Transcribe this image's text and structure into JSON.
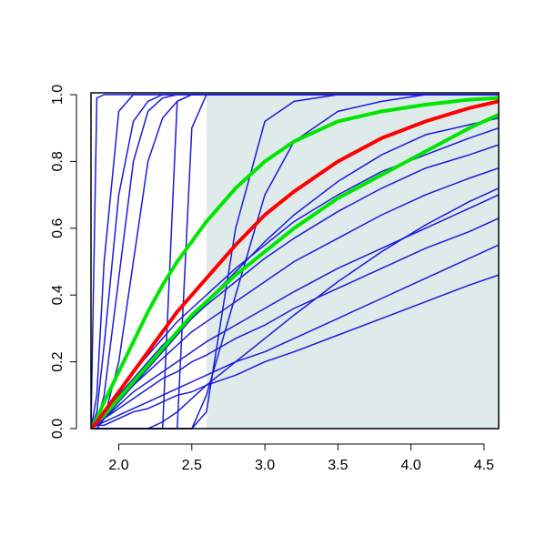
{
  "chart_data": {
    "type": "line",
    "x": [
      1.81,
      1.85,
      1.9,
      2.0,
      2.1,
      2.2,
      2.3,
      2.4,
      2.5,
      2.6,
      2.8,
      3.0,
      3.2,
      3.5,
      3.8,
      4.1,
      4.4,
      4.6
    ],
    "xlim": [
      1.81,
      4.6
    ],
    "ylim": [
      0,
      1
    ],
    "xticks": [
      {
        "value": 2,
        "label": "2.0"
      },
      {
        "value": 2.5,
        "label": "2.5"
      },
      {
        "value": 3,
        "label": "3.0"
      },
      {
        "value": 3.5,
        "label": "3.5"
      },
      {
        "value": 4,
        "label": "4.0"
      },
      {
        "value": 4.5,
        "label": "4.5"
      }
    ],
    "yticks": [
      {
        "value": 0,
        "label": "0.0"
      },
      {
        "value": 0.2,
        "label": "0.2"
      },
      {
        "value": 0.4,
        "label": "0.4"
      },
      {
        "value": 0.6,
        "label": "0.6"
      },
      {
        "value": 0.8,
        "label": "0.8"
      },
      {
        "value": 1,
        "label": "1.0"
      }
    ],
    "shaded_region": {
      "xlim": [
        2.6,
        4.6
      ],
      "color": "#dfeaea"
    },
    "series": [
      {
        "color": "#1a1adc",
        "linewidth": 1.5,
        "values": [
          0,
          0.99,
          1,
          1,
          1,
          1,
          1,
          1,
          1,
          1,
          1,
          1,
          1,
          1,
          1,
          1,
          1,
          1
        ]
      },
      {
        "color": "#1a1adc",
        "linewidth": 1.5,
        "values": [
          0,
          0.1,
          0.5,
          0.95,
          1,
          1,
          1,
          1,
          1,
          1,
          1,
          1,
          1,
          1,
          1,
          1,
          1,
          1
        ]
      },
      {
        "color": "#1a1adc",
        "linewidth": 1.5,
        "values": [
          0,
          0.05,
          0.25,
          0.7,
          0.92,
          0.98,
          1,
          1,
          1,
          1,
          1,
          1,
          1,
          1,
          1,
          1,
          1,
          1
        ]
      },
      {
        "color": "#1a1adc",
        "linewidth": 1.5,
        "values": [
          0,
          0.02,
          0.1,
          0.45,
          0.8,
          0.95,
          0.99,
          1,
          1,
          1,
          1,
          1,
          1,
          1,
          1,
          1,
          1,
          1
        ]
      },
      {
        "color": "#1a1adc",
        "linewidth": 1.5,
        "values": [
          0,
          0,
          0.03,
          0.2,
          0.5,
          0.8,
          0.93,
          0.98,
          1,
          1,
          1,
          1,
          1,
          1,
          1,
          1,
          1,
          1
        ]
      },
      {
        "color": "#1a1adc",
        "linewidth": 1.5,
        "values": [
          0,
          0,
          0,
          0,
          0,
          0,
          0,
          0.98,
          1,
          1,
          1,
          1,
          1,
          1,
          1,
          1,
          1,
          1
        ]
      },
      {
        "color": "#1a1adc",
        "linewidth": 1.5,
        "values": [
          0,
          0,
          0,
          0,
          0,
          0,
          0,
          0,
          0.9,
          1,
          1,
          1,
          1,
          1,
          1,
          1,
          1,
          1
        ]
      },
      {
        "color": "#1a1adc",
        "linewidth": 1.5,
        "values": [
          0,
          0,
          0,
          0,
          0,
          0,
          0,
          0,
          0,
          0.05,
          0.6,
          0.92,
          0.98,
          1,
          1,
          1,
          1,
          1
        ]
      },
      {
        "color": "#1a1adc",
        "linewidth": 1.5,
        "values": [
          0,
          0,
          0,
          0,
          0,
          0,
          0,
          0,
          0,
          0.1,
          0.4,
          0.7,
          0.86,
          0.95,
          0.98,
          1,
          1,
          1
        ]
      },
      {
        "color": "#1a1adc",
        "linewidth": 1.5,
        "values": [
          0,
          0.01,
          0.01,
          0.03,
          0.05,
          0.06,
          0.08,
          0.1,
          0.11,
          0.13,
          0.16,
          0.2,
          0.23,
          0.28,
          0.33,
          0.38,
          0.43,
          0.46
        ]
      },
      {
        "color": "#1a1adc",
        "linewidth": 1.5,
        "values": [
          0,
          0.01,
          0.02,
          0.04,
          0.06,
          0.08,
          0.1,
          0.12,
          0.14,
          0.16,
          0.2,
          0.23,
          0.27,
          0.33,
          0.39,
          0.45,
          0.51,
          0.55
        ]
      },
      {
        "color": "#1a1adc",
        "linewidth": 1.5,
        "values": [
          0,
          0.01,
          0.03,
          0.06,
          0.09,
          0.12,
          0.15,
          0.17,
          0.2,
          0.22,
          0.27,
          0.31,
          0.36,
          0.42,
          0.48,
          0.54,
          0.59,
          0.63
        ]
      },
      {
        "color": "#1a1adc",
        "linewidth": 1.5,
        "values": [
          0,
          0.01,
          0.03,
          0.07,
          0.11,
          0.14,
          0.17,
          0.2,
          0.23,
          0.26,
          0.31,
          0.36,
          0.41,
          0.48,
          0.54,
          0.6,
          0.66,
          0.7
        ]
      },
      {
        "color": "#1a1adc",
        "linewidth": 1.5,
        "values": [
          0,
          0.02,
          0.04,
          0.09,
          0.13,
          0.17,
          0.21,
          0.25,
          0.29,
          0.32,
          0.38,
          0.44,
          0.5,
          0.57,
          0.64,
          0.7,
          0.75,
          0.78
        ]
      },
      {
        "color": "#1a1adc",
        "linewidth": 1.5,
        "values": [
          0,
          0.02,
          0.05,
          0.1,
          0.15,
          0.2,
          0.25,
          0.29,
          0.33,
          0.37,
          0.44,
          0.51,
          0.57,
          0.65,
          0.72,
          0.78,
          0.82,
          0.85
        ]
      },
      {
        "color": "#1a1adc",
        "linewidth": 1.5,
        "values": [
          0,
          0.02,
          0.05,
          0.11,
          0.17,
          0.22,
          0.27,
          0.32,
          0.36,
          0.4,
          0.48,
          0.55,
          0.62,
          0.7,
          0.77,
          0.82,
          0.87,
          0.9
        ]
      },
      {
        "color": "#1a1adc",
        "linewidth": 1.5,
        "values": [
          0,
          0.01,
          0.03,
          0.08,
          0.13,
          0.18,
          0.23,
          0.28,
          0.33,
          0.38,
          0.47,
          0.56,
          0.64,
          0.74,
          0.82,
          0.88,
          0.91,
          0.93
        ]
      },
      {
        "color": "#1a1adc",
        "linewidth": 1.5,
        "values": [
          0,
          0,
          0,
          0,
          0,
          0,
          0.02,
          0.05,
          0.09,
          0.13,
          0.2,
          0.27,
          0.34,
          0.44,
          0.53,
          0.61,
          0.68,
          0.72
        ]
      },
      {
        "color": "#00e600",
        "linewidth": 4,
        "values": [
          0,
          0.03,
          0.08,
          0.17,
          0.26,
          0.35,
          0.43,
          0.5,
          0.56,
          0.62,
          0.72,
          0.8,
          0.86,
          0.92,
          0.95,
          0.97,
          0.985,
          0.99
        ]
      },
      {
        "color": "#00e600",
        "linewidth": 4,
        "values": [
          0,
          0.02,
          0.04,
          0.09,
          0.14,
          0.19,
          0.24,
          0.29,
          0.34,
          0.38,
          0.46,
          0.53,
          0.6,
          0.69,
          0.76,
          0.83,
          0.9,
          0.94
        ]
      },
      {
        "color": "#ff0000",
        "linewidth": 4,
        "values": [
          0,
          0.02,
          0.05,
          0.11,
          0.17,
          0.23,
          0.29,
          0.35,
          0.4,
          0.45,
          0.55,
          0.64,
          0.71,
          0.8,
          0.87,
          0.92,
          0.96,
          0.98
        ]
      }
    ]
  }
}
